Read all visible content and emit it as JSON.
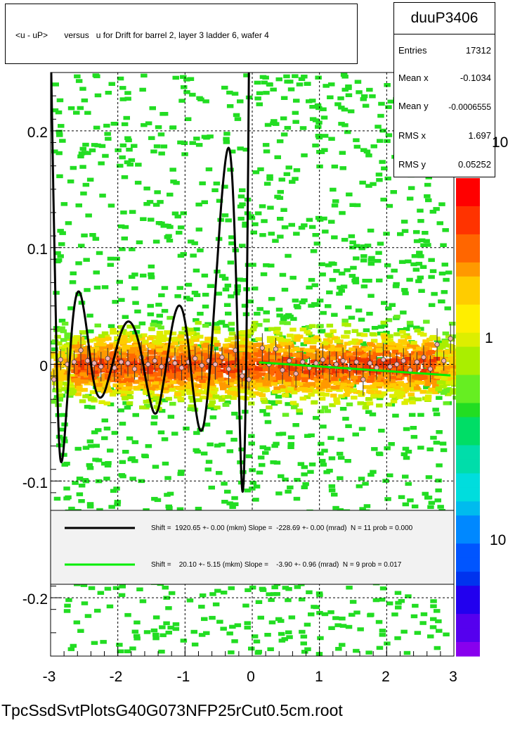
{
  "title": "<u - uP>       versus   u for Drift for barrel 2, layer 3 ladder 6, wafer 4",
  "stats": {
    "name": "duuP3406",
    "rows": [
      {
        "key": "Entries",
        "value": "17312"
      },
      {
        "key": "Mean x",
        "value": "-0.1034"
      },
      {
        "key": "Mean y",
        "value": "-0.0006555"
      },
      {
        "key": "RMS x",
        "value": "1.697"
      },
      {
        "key": "RMS y",
        "value": "0.05252"
      }
    ]
  },
  "legend": {
    "entries": [
      {
        "text": "Shift =  1920.65 +- 0.00 (mkm) Slope =  -228.69 +- 0.00 (mrad)  N = 11 prob = 0.000",
        "color": "#000000"
      },
      {
        "text": "Shift =    20.10 +- 5.15 (mkm) Slope =    -3.90 +- 0.96 (mrad)  N = 9 prob = 0.017",
        "color": "#00ee00"
      }
    ]
  },
  "footer": "TpcSsdSvtPlotsG40G073NFP25rCut0.5cm.root",
  "colors": {
    "frame": "#000000",
    "grid": "#000000",
    "sparse_cell": "#22dd22",
    "fit_black": "#000000",
    "fit_green": "#00ee00",
    "point_fill": "#f5b0b0"
  },
  "chart_data": {
    "type": "heatmap",
    "x_axis": {
      "min": -3,
      "max": 3,
      "ticks": [
        -3,
        -2,
        -1,
        0,
        1,
        2,
        3
      ],
      "tick_labels": [
        "-3",
        "-2",
        "-1",
        "0",
        "1",
        "2",
        "3"
      ]
    },
    "y_axis": {
      "min": -0.25,
      "max": 0.25,
      "ticks": [
        -0.2,
        -0.1,
        0,
        0.1,
        0.2
      ],
      "tick_labels": [
        "-0.2",
        "-0.1",
        "0",
        "0.1",
        "0.2"
      ]
    },
    "z_axis": {
      "scale": "log",
      "tick_labels": [
        "10",
        "1",
        "10"
      ]
    },
    "grid": true,
    "core_band": {
      "center": 0.0,
      "half_width": 0.03
    },
    "profile_points": [
      {
        "x": -2.95,
        "y": -0.013
      },
      {
        "x": -2.85,
        "y": 0.004
      },
      {
        "x": -2.75,
        "y": 0.0
      },
      {
        "x": -2.65,
        "y": 0.002
      },
      {
        "x": -2.55,
        "y": 0.012
      },
      {
        "x": -2.45,
        "y": 0.003
      },
      {
        "x": -2.35,
        "y": 0.001
      },
      {
        "x": -2.25,
        "y": -0.002
      },
      {
        "x": -2.15,
        "y": 0.005
      },
      {
        "x": -2.05,
        "y": -0.003
      },
      {
        "x": -1.95,
        "y": 0.002
      },
      {
        "x": -1.85,
        "y": 0.001
      },
      {
        "x": -1.75,
        "y": -0.004
      },
      {
        "x": -1.65,
        "y": 0.006
      },
      {
        "x": -1.55,
        "y": 0.0
      },
      {
        "x": -1.45,
        "y": 0.003
      },
      {
        "x": -1.35,
        "y": -0.002
      },
      {
        "x": -1.25,
        "y": 0.004
      },
      {
        "x": -1.15,
        "y": 0.001
      },
      {
        "x": -1.05,
        "y": -0.003
      },
      {
        "x": -0.95,
        "y": 0.002
      },
      {
        "x": -0.85,
        "y": 0.005
      },
      {
        "x": -0.75,
        "y": -0.001
      },
      {
        "x": -0.65,
        "y": 0.003
      },
      {
        "x": -0.55,
        "y": 0.0
      },
      {
        "x": -0.45,
        "y": 0.006
      },
      {
        "x": -0.35,
        "y": -0.004
      },
      {
        "x": -0.25,
        "y": 0.012
      },
      {
        "x": -0.15,
        "y": -0.01
      },
      {
        "x": -0.05,
        "y": -0.013
      },
      {
        "x": 0.15,
        "y": 0.014
      },
      {
        "x": 0.25,
        "y": 0.0
      },
      {
        "x": 0.35,
        "y": 0.013
      },
      {
        "x": 0.45,
        "y": -0.005
      },
      {
        "x": 0.55,
        "y": 0.003
      },
      {
        "x": 0.65,
        "y": -0.008
      },
      {
        "x": 0.75,
        "y": 0.002
      },
      {
        "x": 0.85,
        "y": -0.003
      },
      {
        "x": 0.95,
        "y": 0.001
      },
      {
        "x": 1.05,
        "y": 0.004
      },
      {
        "x": 1.15,
        "y": -0.002
      },
      {
        "x": 1.25,
        "y": 0.0
      },
      {
        "x": 1.35,
        "y": 0.003
      },
      {
        "x": 1.45,
        "y": -0.004
      },
      {
        "x": 1.55,
        "y": 0.002
      },
      {
        "x": 1.65,
        "y": -0.013
      },
      {
        "x": 1.75,
        "y": 0.001
      },
      {
        "x": 1.85,
        "y": -0.003
      },
      {
        "x": 1.95,
        "y": 0.004
      },
      {
        "x": 2.05,
        "y": -0.002
      },
      {
        "x": 2.15,
        "y": 0.0
      },
      {
        "x": 2.25,
        "y": 0.003
      },
      {
        "x": 2.35,
        "y": -0.005
      },
      {
        "x": 2.45,
        "y": 0.002
      },
      {
        "x": 2.55,
        "y": 0.006
      },
      {
        "x": 2.65,
        "y": -0.004
      },
      {
        "x": 2.75,
        "y": 0.017
      },
      {
        "x": 2.85,
        "y": 0.003
      },
      {
        "x": 2.95,
        "y": 0.022
      }
    ],
    "fit_black_curve": [
      {
        "x": -2.99,
        "y": 0.25
      },
      {
        "x": -2.93,
        "y": 0.05
      },
      {
        "x": -2.88,
        "y": -0.07
      },
      {
        "x": -2.83,
        "y": -0.092
      },
      {
        "x": -2.75,
        "y": -0.03
      },
      {
        "x": -2.67,
        "y": 0.045
      },
      {
        "x": -2.58,
        "y": 0.069
      },
      {
        "x": -2.48,
        "y": 0.04
      },
      {
        "x": -2.36,
        "y": -0.02
      },
      {
        "x": -2.24,
        "y": -0.033
      },
      {
        "x": -2.1,
        "y": -0.005
      },
      {
        "x": -1.95,
        "y": 0.03
      },
      {
        "x": -1.82,
        "y": 0.04
      },
      {
        "x": -1.68,
        "y": 0.02
      },
      {
        "x": -1.55,
        "y": -0.025
      },
      {
        "x": -1.43,
        "y": -0.05
      },
      {
        "x": -1.3,
        "y": -0.01
      },
      {
        "x": -1.18,
        "y": 0.04
      },
      {
        "x": -1.07,
        "y": 0.055
      },
      {
        "x": -0.97,
        "y": 0.03
      },
      {
        "x": -0.87,
        "y": -0.03
      },
      {
        "x": -0.76,
        "y": -0.066
      },
      {
        "x": -0.66,
        "y": -0.03
      },
      {
        "x": -0.55,
        "y": 0.06
      },
      {
        "x": -0.45,
        "y": 0.15
      },
      {
        "x": -0.36,
        "y": 0.193
      },
      {
        "x": -0.3,
        "y": 0.17
      },
      {
        "x": -0.24,
        "y": 0.08
      },
      {
        "x": -0.18,
        "y": -0.07
      },
      {
        "x": -0.14,
        "y": -0.125
      },
      {
        "x": -0.1,
        "y": -0.05
      },
      {
        "x": -0.07,
        "y": 0.1
      },
      {
        "x": -0.05,
        "y": 0.25
      }
    ],
    "fit_green_line": {
      "x_start": 0.1,
      "x_end": 2.95,
      "shift_um": 20.1,
      "slope_mrad": -3.9
    }
  }
}
